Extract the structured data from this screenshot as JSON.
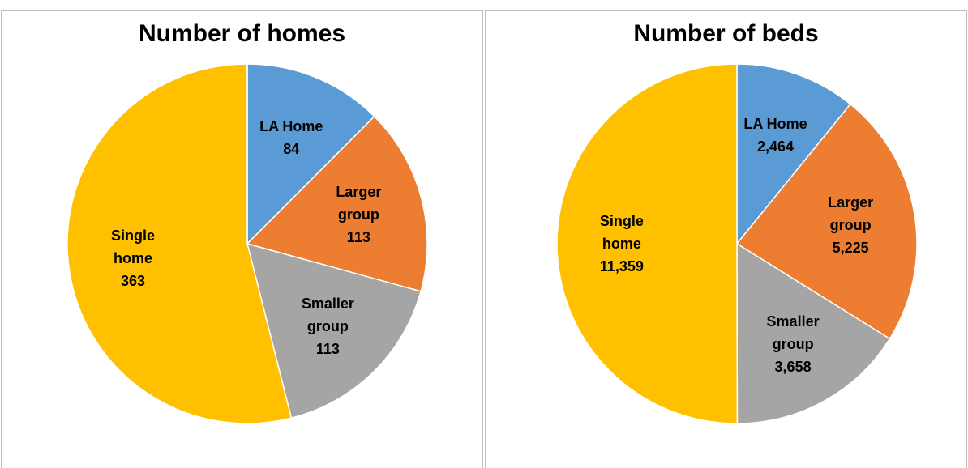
{
  "chart_data": [
    {
      "type": "pie",
      "title": "Number of homes",
      "categories": [
        "LA Home",
        "Larger group",
        "Smaller group",
        "Single home"
      ],
      "values": [
        84,
        113,
        113,
        363
      ],
      "colors": [
        "#5b9bd5",
        "#ed7d31",
        "#a5a5a5",
        "#ffc000"
      ]
    },
    {
      "type": "pie",
      "title": "Number of beds",
      "categories": [
        "LA Home",
        "Larger group",
        "Smaller group",
        "Single home"
      ],
      "values": [
        2464,
        5225,
        3658,
        11359
      ],
      "value_labels": [
        "2,464",
        "5,225",
        "3,658",
        "11,359"
      ],
      "colors": [
        "#5b9bd5",
        "#ed7d31",
        "#a5a5a5",
        "#ffc000"
      ]
    }
  ]
}
